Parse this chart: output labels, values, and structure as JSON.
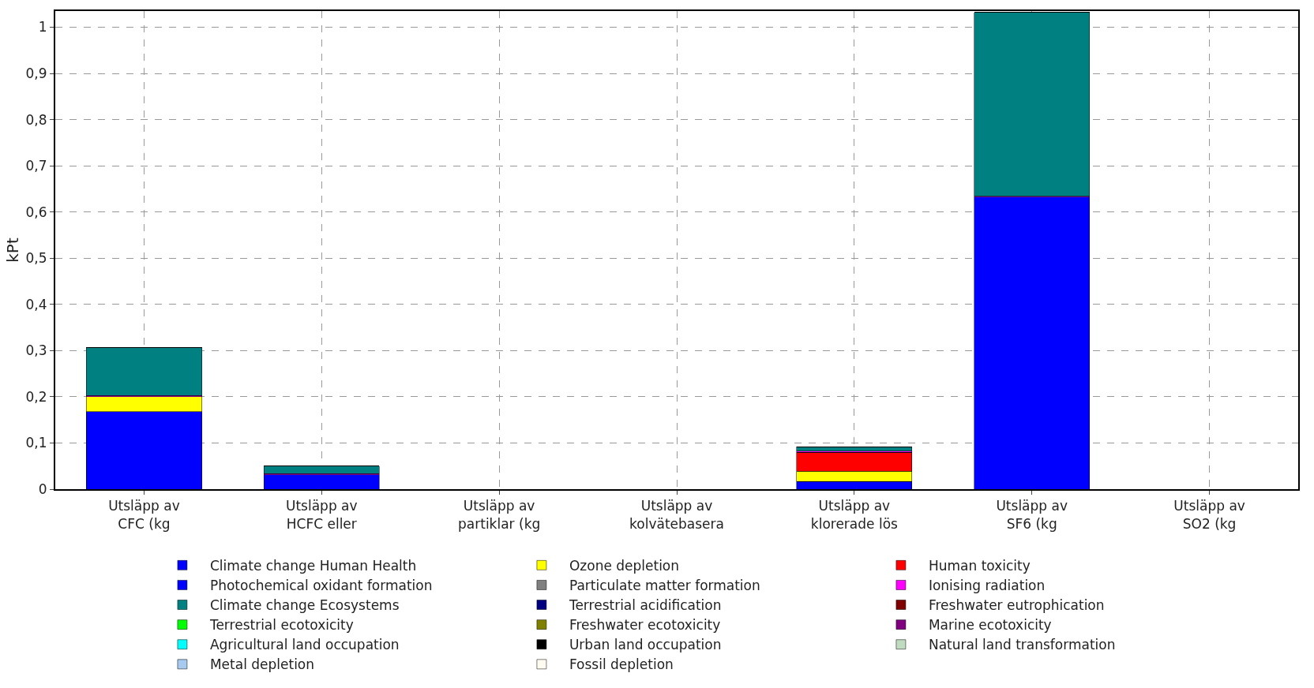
{
  "chart_data": {
    "type": "bar",
    "stacked": true,
    "ylabel": "kPt",
    "categories": [
      "Utsläpp av\nCFC (kg",
      "Utsläpp av\nHCFC eller",
      "Utsläpp av\npartiklar (kg",
      "Utsläpp av\nkolvätebasera",
      "Utsläpp av\nklorerade lös",
      "Utsläpp av\nSF6 (kg",
      "Utsläpp av\nSO2 (kg"
    ],
    "ylim": [
      0,
      1.035
    ],
    "yticks": [
      0,
      {
        "value": 0.1,
        "label": "0,1"
      },
      {
        "value": 0.2,
        "label": "0,2"
      },
      {
        "value": 0.3,
        "label": "0,3"
      },
      {
        "value": 0.4,
        "label": "0,4"
      },
      {
        "value": 0.5,
        "label": "0,5"
      },
      {
        "value": 0.6,
        "label": "0,6"
      },
      {
        "value": 0.7,
        "label": "0,7"
      },
      {
        "value": 0.8,
        "label": "0,8"
      },
      {
        "value": 0.9,
        "label": "0,9"
      },
      1
    ],
    "grid": true,
    "legend": "bottom",
    "series": [
      {
        "name": "Climate change Human Health",
        "color": "#0000ff",
        "values": [
          0.168,
          0.031,
          0,
          0,
          0.017,
          0.632,
          0
        ]
      },
      {
        "name": "Ozone depletion",
        "color": "#ffff00",
        "values": [
          0.032,
          0,
          0,
          0,
          0.022,
          0,
          0
        ]
      },
      {
        "name": "Human toxicity",
        "color": "#ff0000",
        "values": [
          0,
          0,
          0,
          0,
          0.041,
          0,
          0
        ]
      },
      {
        "name": "Photochemical oxidant formation",
        "color": "#0000ff",
        "values": [
          0,
          0,
          0,
          0,
          0,
          0,
          0
        ]
      },
      {
        "name": "Particulate matter formation",
        "color": "#808080",
        "values": [
          0,
          0,
          0,
          0,
          0,
          0,
          0
        ]
      },
      {
        "name": "Ionising radiation",
        "color": "#ff00ff",
        "values": [
          0.003,
          0.003,
          0,
          0,
          0.002,
          0.002,
          0
        ]
      },
      {
        "name": "Climate change Ecosystems",
        "color": "#008080",
        "values": [
          0.104,
          0.016,
          0,
          0,
          0.01,
          0.398,
          0
        ]
      },
      {
        "name": "Terrestrial acidification",
        "color": "#000080",
        "values": [
          0,
          0,
          0,
          0,
          0,
          0,
          0
        ]
      },
      {
        "name": "Freshwater eutrophication",
        "color": "#800000",
        "values": [
          0,
          0,
          0,
          0,
          0,
          0,
          0
        ]
      },
      {
        "name": "Terrestrial ecotoxicity",
        "color": "#00ff00",
        "values": [
          0,
          0,
          0,
          0,
          0,
          0,
          0
        ]
      },
      {
        "name": "Freshwater ecotoxicity",
        "color": "#808000",
        "values": [
          0,
          0,
          0,
          0,
          0,
          0,
          0
        ]
      },
      {
        "name": "Marine ecotoxicity",
        "color": "#800080",
        "values": [
          0,
          0,
          0,
          0,
          0,
          0,
          0
        ]
      },
      {
        "name": "Agricultural land occupation",
        "color": "#00ffff",
        "values": [
          0,
          0,
          0,
          0,
          0,
          0,
          0
        ]
      },
      {
        "name": "Urban land occupation",
        "color": "#000000",
        "values": [
          0,
          0,
          0,
          0,
          0,
          0,
          0
        ]
      },
      {
        "name": "Natural land transformation",
        "color": "#c0dcc0",
        "values": [
          0,
          0,
          0,
          0,
          0,
          0,
          0
        ]
      },
      {
        "name": "Metal depletion",
        "color": "#a6caf0",
        "values": [
          0,
          0,
          0,
          0,
          0,
          0,
          0
        ]
      },
      {
        "name": "Fossil depletion",
        "color": "#fffbf0",
        "values": [
          0,
          0,
          0,
          0,
          0,
          0,
          0
        ]
      }
    ]
  }
}
